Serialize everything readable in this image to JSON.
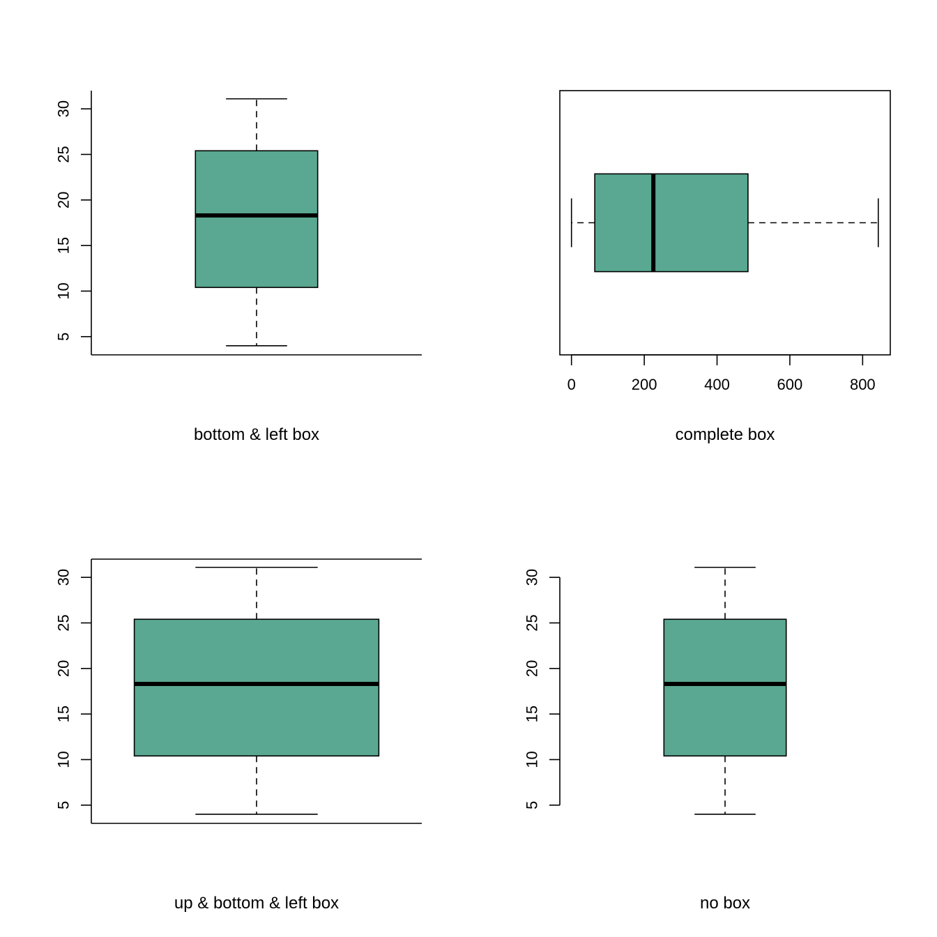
{
  "figure": {
    "background": "#ffffff"
  },
  "chart_data": [
    {
      "type": "boxplot",
      "orientation": "vertical",
      "caption": "bottom & left box",
      "frame": "bottom-left",
      "value_axis_ticks": [
        5,
        10,
        15,
        20,
        25,
        30
      ],
      "value_axis_range": [
        3,
        32
      ],
      "stats": {
        "whisker_low": 4,
        "q1": 10.4,
        "median": 18.3,
        "q3": 25.4,
        "whisker_high": 31.1
      },
      "fill_color": "#5aa891",
      "box_width_fraction": 0.37
    },
    {
      "type": "boxplot",
      "orientation": "horizontal",
      "caption": "complete box",
      "frame": "complete",
      "value_axis_ticks": [
        0,
        200,
        400,
        600,
        800
      ],
      "value_axis_range": [
        -32,
        876
      ],
      "stats": {
        "whisker_low": 0,
        "q1": 64,
        "median": 225,
        "q3": 485,
        "whisker_high": 843
      },
      "fill_color": "#5aa891",
      "box_width_fraction": 0.37
    },
    {
      "type": "boxplot",
      "orientation": "vertical",
      "caption": "up & bottom & left box",
      "frame": "top-bottom-left",
      "value_axis_ticks": [
        5,
        10,
        15,
        20,
        25,
        30
      ],
      "value_axis_range": [
        3,
        32
      ],
      "stats": {
        "whisker_low": 4,
        "q1": 10.4,
        "median": 18.3,
        "q3": 25.4,
        "whisker_high": 31.1
      },
      "fill_color": "#5aa891",
      "box_width_fraction": 0.74
    },
    {
      "type": "boxplot",
      "orientation": "vertical",
      "caption": "no box",
      "frame": "left-axis-only",
      "value_axis_ticks": [
        5,
        10,
        15,
        20,
        25,
        30
      ],
      "value_axis_range": [
        3,
        32
      ],
      "stats": {
        "whisker_low": 4,
        "q1": 10.4,
        "median": 18.3,
        "q3": 25.4,
        "whisker_high": 31.1
      },
      "fill_color": "#5aa891",
      "box_width_fraction": 0.37
    }
  ]
}
